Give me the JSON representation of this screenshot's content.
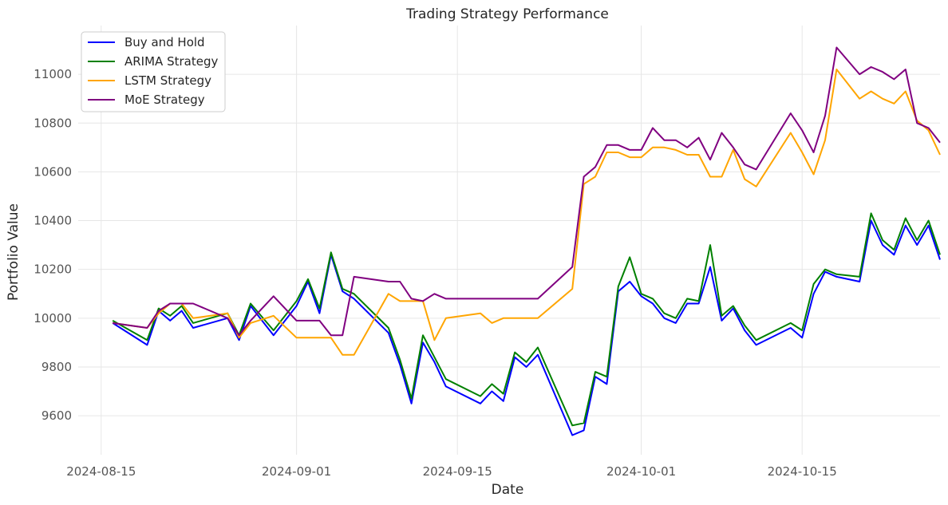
{
  "chart_data": {
    "type": "line",
    "title": "Trading Strategy Performance",
    "xlabel": "Date",
    "ylabel": "Portfolio Value",
    "xlim": [
      "2024-08-13",
      "2024-10-27"
    ],
    "ylim": [
      9440,
      11200
    ],
    "x_ticks": [
      "2024-08-15",
      "2024-09-01",
      "2024-09-15",
      "2024-10-01",
      "2024-10-15"
    ],
    "y_ticks": [
      9600,
      9800,
      10000,
      10200,
      10400,
      10600,
      10800,
      11000
    ],
    "grid": true,
    "legend_position": "top-left",
    "series": [
      {
        "name": "Buy and Hold",
        "color": "#0000ff",
        "points": [
          [
            "2024-08-16",
            9980
          ],
          [
            "2024-08-19",
            9890
          ],
          [
            "2024-08-20",
            10030
          ],
          [
            "2024-08-21",
            9990
          ],
          [
            "2024-08-22",
            10030
          ],
          [
            "2024-08-23",
            9960
          ],
          [
            "2024-08-26",
            10000
          ],
          [
            "2024-08-27",
            9910
          ],
          [
            "2024-08-28",
            10050
          ],
          [
            "2024-08-30",
            9930
          ],
          [
            "2024-09-01",
            10050
          ],
          [
            "2024-09-02",
            10150
          ],
          [
            "2024-09-03",
            10020
          ],
          [
            "2024-09-04",
            10260
          ],
          [
            "2024-09-05",
            10110
          ],
          [
            "2024-09-06",
            10080
          ],
          [
            "2024-09-09",
            9940
          ],
          [
            "2024-09-10",
            9810
          ],
          [
            "2024-09-11",
            9650
          ],
          [
            "2024-09-12",
            9900
          ],
          [
            "2024-09-13",
            9820
          ],
          [
            "2024-09-14",
            9720
          ],
          [
            "2024-09-17",
            9650
          ],
          [
            "2024-09-18",
            9700
          ],
          [
            "2024-09-19",
            9660
          ],
          [
            "2024-09-20",
            9840
          ],
          [
            "2024-09-21",
            9800
          ],
          [
            "2024-09-22",
            9850
          ],
          [
            "2024-09-25",
            9520
          ],
          [
            "2024-09-26",
            9540
          ],
          [
            "2024-09-27",
            9760
          ],
          [
            "2024-09-28",
            9730
          ],
          [
            "2024-09-29",
            10110
          ],
          [
            "2024-09-30",
            10150
          ],
          [
            "2024-10-01",
            10090
          ],
          [
            "2024-10-02",
            10060
          ],
          [
            "2024-10-03",
            10000
          ],
          [
            "2024-10-04",
            9980
          ],
          [
            "2024-10-05",
            10060
          ],
          [
            "2024-10-06",
            10060
          ],
          [
            "2024-10-07",
            10210
          ],
          [
            "2024-10-08",
            9990
          ],
          [
            "2024-10-09",
            10040
          ],
          [
            "2024-10-10",
            9950
          ],
          [
            "2024-10-11",
            9890
          ],
          [
            "2024-10-14",
            9960
          ],
          [
            "2024-10-15",
            9920
          ],
          [
            "2024-10-16",
            10100
          ],
          [
            "2024-10-17",
            10190
          ],
          [
            "2024-10-18",
            10170
          ],
          [
            "2024-10-20",
            10150
          ],
          [
            "2024-10-21",
            10400
          ],
          [
            "2024-10-22",
            10300
          ],
          [
            "2024-10-23",
            10260
          ],
          [
            "2024-10-24",
            10380
          ],
          [
            "2024-10-25",
            10300
          ],
          [
            "2024-10-26",
            10380
          ],
          [
            "2024-10-27",
            10240
          ]
        ]
      },
      {
        "name": "ARIMA Strategy",
        "color": "#008000",
        "points": [
          [
            "2024-08-16",
            9990
          ],
          [
            "2024-08-19",
            9910
          ],
          [
            "2024-08-20",
            10040
          ],
          [
            "2024-08-21",
            10010
          ],
          [
            "2024-08-22",
            10050
          ],
          [
            "2024-08-23",
            9980
          ],
          [
            "2024-08-26",
            10020
          ],
          [
            "2024-08-27",
            9930
          ],
          [
            "2024-08-28",
            10060
          ],
          [
            "2024-08-30",
            9950
          ],
          [
            "2024-09-01",
            10070
          ],
          [
            "2024-09-02",
            10160
          ],
          [
            "2024-09-03",
            10040
          ],
          [
            "2024-09-04",
            10270
          ],
          [
            "2024-09-05",
            10120
          ],
          [
            "2024-09-06",
            10100
          ],
          [
            "2024-09-09",
            9960
          ],
          [
            "2024-09-10",
            9830
          ],
          [
            "2024-09-11",
            9670
          ],
          [
            "2024-09-12",
            9930
          ],
          [
            "2024-09-13",
            9840
          ],
          [
            "2024-09-14",
            9750
          ],
          [
            "2024-09-17",
            9680
          ],
          [
            "2024-09-18",
            9730
          ],
          [
            "2024-09-19",
            9690
          ],
          [
            "2024-09-20",
            9860
          ],
          [
            "2024-09-21",
            9820
          ],
          [
            "2024-09-22",
            9880
          ],
          [
            "2024-09-25",
            9560
          ],
          [
            "2024-09-26",
            9570
          ],
          [
            "2024-09-27",
            9780
          ],
          [
            "2024-09-28",
            9760
          ],
          [
            "2024-09-29",
            10130
          ],
          [
            "2024-09-30",
            10250
          ],
          [
            "2024-10-01",
            10100
          ],
          [
            "2024-10-02",
            10080
          ],
          [
            "2024-10-03",
            10020
          ],
          [
            "2024-10-04",
            10000
          ],
          [
            "2024-10-05",
            10080
          ],
          [
            "2024-10-06",
            10070
          ],
          [
            "2024-10-07",
            10300
          ],
          [
            "2024-10-08",
            10010
          ],
          [
            "2024-10-09",
            10050
          ],
          [
            "2024-10-10",
            9970
          ],
          [
            "2024-10-11",
            9910
          ],
          [
            "2024-10-14",
            9980
          ],
          [
            "2024-10-15",
            9950
          ],
          [
            "2024-10-16",
            10140
          ],
          [
            "2024-10-17",
            10200
          ],
          [
            "2024-10-18",
            10180
          ],
          [
            "2024-10-20",
            10170
          ],
          [
            "2024-10-21",
            10430
          ],
          [
            "2024-10-22",
            10320
          ],
          [
            "2024-10-23",
            10280
          ],
          [
            "2024-10-24",
            10410
          ],
          [
            "2024-10-25",
            10320
          ],
          [
            "2024-10-26",
            10400
          ],
          [
            "2024-10-27",
            10260
          ]
        ]
      },
      {
        "name": "LSTM Strategy",
        "color": "#ffa500",
        "points": [
          [
            "2024-08-16",
            9980
          ],
          [
            "2024-08-19",
            9960
          ],
          [
            "2024-08-20",
            10020
          ],
          [
            "2024-08-21",
            10060
          ],
          [
            "2024-08-22",
            10060
          ],
          [
            "2024-08-23",
            10000
          ],
          [
            "2024-08-26",
            10020
          ],
          [
            "2024-08-27",
            9920
          ],
          [
            "2024-08-28",
            9980
          ],
          [
            "2024-08-30",
            10010
          ],
          [
            "2024-09-01",
            9920
          ],
          [
            "2024-09-02",
            9920
          ],
          [
            "2024-09-03",
            9920
          ],
          [
            "2024-09-04",
            9920
          ],
          [
            "2024-09-05",
            9850
          ],
          [
            "2024-09-06",
            9850
          ],
          [
            "2024-09-09",
            10100
          ],
          [
            "2024-09-10",
            10070
          ],
          [
            "2024-09-11",
            10070
          ],
          [
            "2024-09-12",
            10070
          ],
          [
            "2024-09-13",
            9910
          ],
          [
            "2024-09-14",
            10000
          ],
          [
            "2024-09-17",
            10020
          ],
          [
            "2024-09-18",
            9980
          ],
          [
            "2024-09-19",
            10000
          ],
          [
            "2024-09-20",
            10000
          ],
          [
            "2024-09-21",
            10000
          ],
          [
            "2024-09-22",
            10000
          ],
          [
            "2024-09-25",
            10120
          ],
          [
            "2024-09-26",
            10550
          ],
          [
            "2024-09-27",
            10580
          ],
          [
            "2024-09-28",
            10680
          ],
          [
            "2024-09-29",
            10680
          ],
          [
            "2024-09-30",
            10660
          ],
          [
            "2024-10-01",
            10660
          ],
          [
            "2024-10-02",
            10700
          ],
          [
            "2024-10-03",
            10700
          ],
          [
            "2024-10-04",
            10690
          ],
          [
            "2024-10-05",
            10670
          ],
          [
            "2024-10-06",
            10670
          ],
          [
            "2024-10-07",
            10580
          ],
          [
            "2024-10-08",
            10580
          ],
          [
            "2024-10-09",
            10690
          ],
          [
            "2024-10-10",
            10570
          ],
          [
            "2024-10-11",
            10540
          ],
          [
            "2024-10-14",
            10760
          ],
          [
            "2024-10-15",
            10680
          ],
          [
            "2024-10-16",
            10590
          ],
          [
            "2024-10-17",
            10730
          ],
          [
            "2024-10-18",
            11020
          ],
          [
            "2024-10-20",
            10900
          ],
          [
            "2024-10-21",
            10930
          ],
          [
            "2024-10-22",
            10900
          ],
          [
            "2024-10-23",
            10880
          ],
          [
            "2024-10-24",
            10930
          ],
          [
            "2024-10-25",
            10810
          ],
          [
            "2024-10-26",
            10770
          ],
          [
            "2024-10-27",
            10670
          ]
        ]
      },
      {
        "name": "MoE Strategy",
        "color": "#800080",
        "points": [
          [
            "2024-08-16",
            9980
          ],
          [
            "2024-08-19",
            9960
          ],
          [
            "2024-08-20",
            10030
          ],
          [
            "2024-08-21",
            10060
          ],
          [
            "2024-08-22",
            10060
          ],
          [
            "2024-08-23",
            10060
          ],
          [
            "2024-08-26",
            10000
          ],
          [
            "2024-08-27",
            9930
          ],
          [
            "2024-08-28",
            9990
          ],
          [
            "2024-08-30",
            10090
          ],
          [
            "2024-09-01",
            9990
          ],
          [
            "2024-09-02",
            9990
          ],
          [
            "2024-09-03",
            9990
          ],
          [
            "2024-09-04",
            9930
          ],
          [
            "2024-09-05",
            9930
          ],
          [
            "2024-09-06",
            10170
          ],
          [
            "2024-09-09",
            10150
          ],
          [
            "2024-09-10",
            10150
          ],
          [
            "2024-09-11",
            10080
          ],
          [
            "2024-09-12",
            10070
          ],
          [
            "2024-09-13",
            10100
          ],
          [
            "2024-09-14",
            10080
          ],
          [
            "2024-09-17",
            10080
          ],
          [
            "2024-09-18",
            10080
          ],
          [
            "2024-09-19",
            10080
          ],
          [
            "2024-09-20",
            10080
          ],
          [
            "2024-09-21",
            10080
          ],
          [
            "2024-09-22",
            10080
          ],
          [
            "2024-09-25",
            10210
          ],
          [
            "2024-09-26",
            10580
          ],
          [
            "2024-09-27",
            10620
          ],
          [
            "2024-09-28",
            10710
          ],
          [
            "2024-09-29",
            10710
          ],
          [
            "2024-09-30",
            10690
          ],
          [
            "2024-10-01",
            10690
          ],
          [
            "2024-10-02",
            10780
          ],
          [
            "2024-10-03",
            10730
          ],
          [
            "2024-10-04",
            10730
          ],
          [
            "2024-10-05",
            10700
          ],
          [
            "2024-10-06",
            10740
          ],
          [
            "2024-10-07",
            10650
          ],
          [
            "2024-10-08",
            10760
          ],
          [
            "2024-10-09",
            10700
          ],
          [
            "2024-10-10",
            10630
          ],
          [
            "2024-10-11",
            10610
          ],
          [
            "2024-10-14",
            10840
          ],
          [
            "2024-10-15",
            10770
          ],
          [
            "2024-10-16",
            10680
          ],
          [
            "2024-10-17",
            10830
          ],
          [
            "2024-10-18",
            11110
          ],
          [
            "2024-10-20",
            11000
          ],
          [
            "2024-10-21",
            11030
          ],
          [
            "2024-10-22",
            11010
          ],
          [
            "2024-10-23",
            10980
          ],
          [
            "2024-10-24",
            11020
          ],
          [
            "2024-10-25",
            10800
          ],
          [
            "2024-10-26",
            10780
          ],
          [
            "2024-10-27",
            10720
          ]
        ]
      }
    ]
  }
}
